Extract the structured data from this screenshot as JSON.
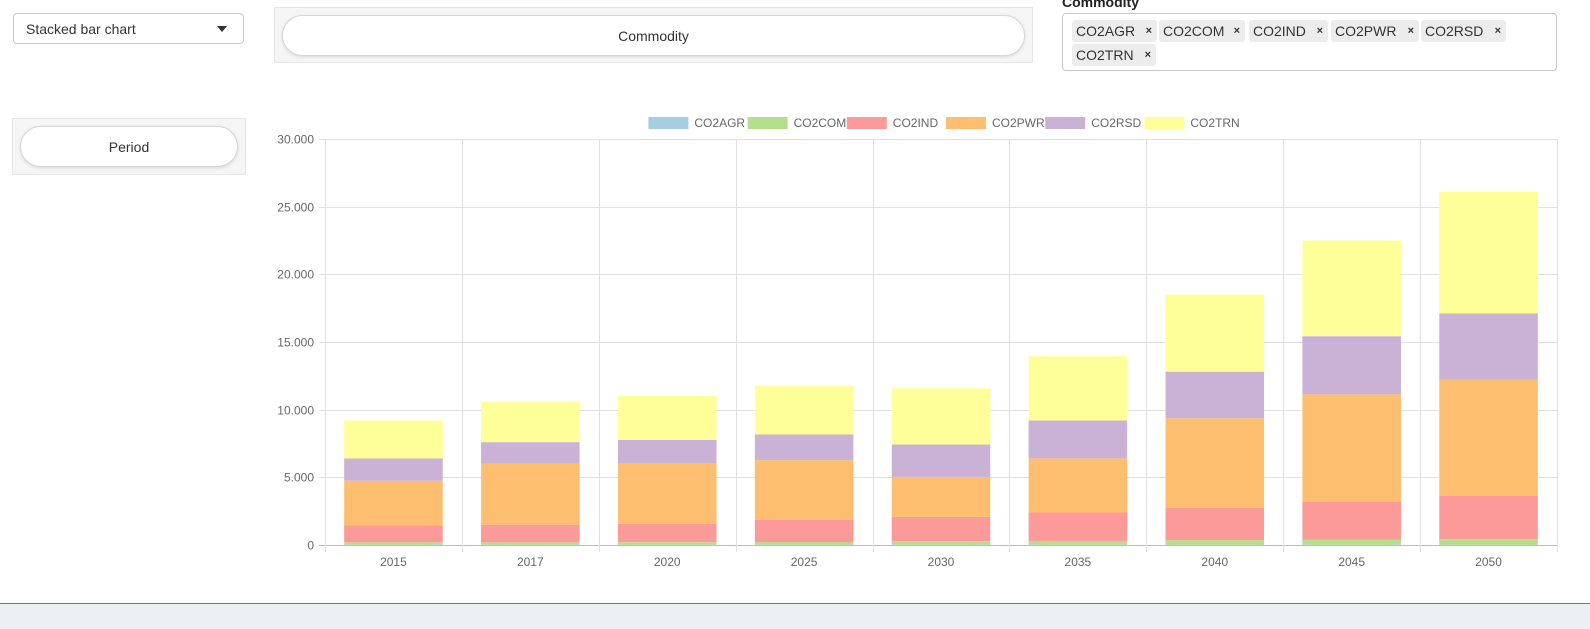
{
  "controls": {
    "chart_type": "Stacked bar chart",
    "column_button": "Commodity",
    "row_button": "Period",
    "commodity_label": "Commodity",
    "commodity_tags": [
      "CO2AGR",
      "CO2COM",
      "CO2IND",
      "CO2PWR",
      "CO2RSD",
      "CO2TRN"
    ],
    "remove_glyph": "×"
  },
  "chart_data": {
    "type": "bar",
    "stacked": true,
    "categories": [
      "2015",
      "2017",
      "2020",
      "2025",
      "2030",
      "2035",
      "2040",
      "2045",
      "2050"
    ],
    "ylim": [
      0,
      30000
    ],
    "yticks": [
      0,
      5000,
      10000,
      15000,
      20000,
      25000,
      30000
    ],
    "ytick_labels": [
      "0",
      "5.000",
      "10.000",
      "15.000",
      "20.000",
      "25.000",
      "30.000"
    ],
    "grid": true,
    "legend_position": "top",
    "series": [
      {
        "name": "CO2AGR",
        "color": "#a6cee3",
        "values": [
          20,
          20,
          20,
          20,
          20,
          20,
          20,
          20,
          20
        ]
      },
      {
        "name": "CO2COM",
        "color": "#b2df8a",
        "values": [
          180,
          180,
          190,
          200,
          260,
          280,
          340,
          360,
          400
        ]
      },
      {
        "name": "CO2IND",
        "color": "#fb9a99",
        "values": [
          1250,
          1300,
          1350,
          1650,
          1800,
          2100,
          2400,
          2800,
          3200
        ]
      },
      {
        "name": "CO2PWR",
        "color": "#fdbf6f",
        "values": [
          3300,
          4500,
          4500,
          4400,
          2950,
          4000,
          6600,
          7950,
          8600
        ]
      },
      {
        "name": "CO2RSD",
        "color": "#cab2d6",
        "values": [
          1650,
          1600,
          1700,
          1900,
          2400,
          2800,
          3450,
          4300,
          4900
        ]
      },
      {
        "name": "CO2TRN",
        "color": "#ffff99",
        "values": [
          2800,
          3000,
          3250,
          3600,
          4150,
          4750,
          5700,
          7070,
          8980
        ]
      }
    ]
  }
}
